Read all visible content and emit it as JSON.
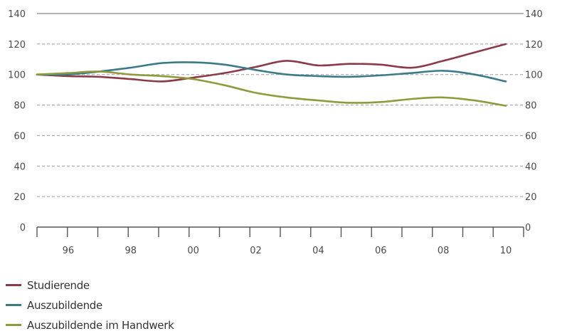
{
  "chart_data": {
    "type": "line",
    "x": [
      1995,
      1996,
      1997,
      1998,
      1999,
      2000,
      2001,
      2002,
      2003,
      2004,
      2005,
      2006,
      2007,
      2008,
      2009,
      2010
    ],
    "xlim": [
      1995,
      2010.5
    ],
    "ylim": [
      0,
      140
    ],
    "yticks": [
      0,
      20,
      40,
      60,
      80,
      100,
      120,
      140
    ],
    "xtick_labels": [
      {
        "x": 1996,
        "label": "96"
      },
      {
        "x": 1998,
        "label": "98"
      },
      {
        "x": 2000,
        "label": "00"
      },
      {
        "x": 2002,
        "label": "02"
      },
      {
        "x": 2004,
        "label": "04"
      },
      {
        "x": 2006,
        "label": "06"
      },
      {
        "x": 2008,
        "label": "08"
      },
      {
        "x": 2010,
        "label": "10"
      }
    ],
    "grid": true,
    "legend_position": "bottom-left",
    "series": [
      {
        "name": "Studierende",
        "color": "#8b3a47",
        "values": [
          100,
          99,
          98.5,
          97,
          95.5,
          98,
          101,
          105,
          109,
          106,
          107,
          106.5,
          104.5,
          109,
          114.5,
          120
        ]
      },
      {
        "name": "Auszubildende",
        "color": "#3c7a8a",
        "values": [
          100,
          100,
          102,
          104.5,
          107.5,
          108,
          106.5,
          103,
          100,
          99,
          98.5,
          99.5,
          101,
          102.5,
          100,
          95.5
        ]
      },
      {
        "name": "Auszubildende im Handwerk",
        "color": "#8f9a3c",
        "values": [
          100,
          101,
          102,
          100,
          99,
          97,
          93,
          88,
          85,
          83,
          81.5,
          82,
          84,
          85,
          83,
          79.5
        ]
      }
    ]
  }
}
